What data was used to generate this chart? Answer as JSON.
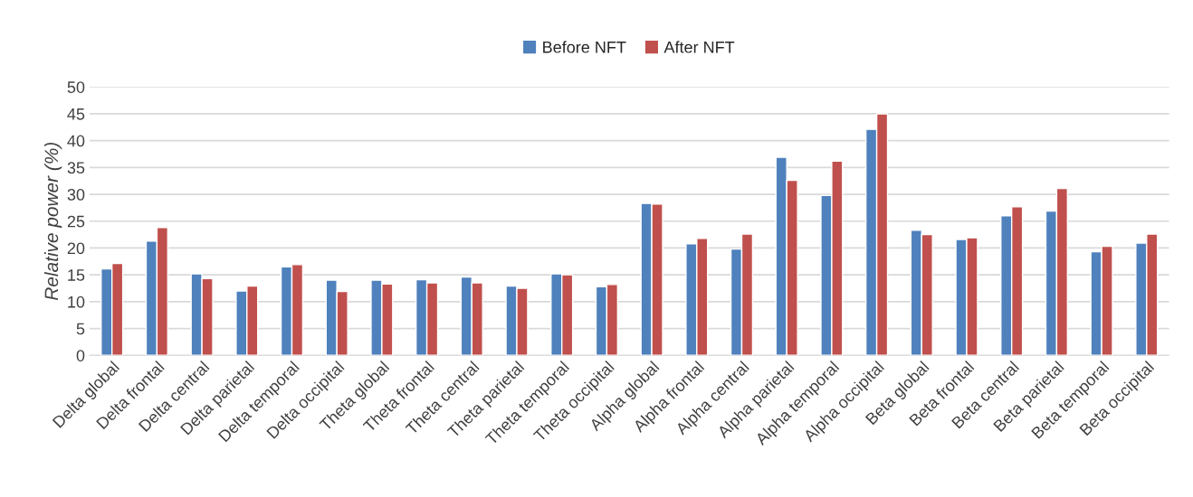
{
  "chart_data": {
    "type": "bar",
    "ylabel": "Relative power (%)",
    "categories": [
      "Delta global",
      "Delta frontal",
      "Delta central",
      "Delta parietal",
      "Delta temporal",
      "Delta occipital",
      "Theta global",
      "Theta frontal",
      "Theta central",
      "Theta parietal",
      "Theta temporal",
      "Theta occipital",
      "Alpha global",
      "Alpha frontal",
      "Alpha central",
      "Alpha parietal",
      "Alpha temporal",
      "Alpha occipital",
      "Beta global",
      "Beta frontal",
      "Beta central",
      "Beta parietal",
      "Beta temporal",
      "Beta occipital"
    ],
    "series": [
      {
        "name": "Before NFT",
        "color": "#4f81bd",
        "values": [
          16.1,
          21.3,
          15.2,
          12.0,
          16.5,
          14.0,
          14.0,
          14.1,
          14.6,
          12.9,
          15.2,
          12.8,
          28.3,
          20.8,
          19.8,
          36.9,
          29.8,
          42.1,
          23.3,
          21.6,
          26.0,
          26.9,
          19.3,
          20.9
        ]
      },
      {
        "name": "After NFT",
        "color": "#c0504d",
        "values": [
          17.1,
          23.8,
          14.3,
          12.9,
          16.9,
          11.9,
          13.3,
          13.5,
          13.5,
          12.5,
          15.0,
          13.2,
          28.2,
          21.8,
          22.6,
          32.6,
          36.2,
          45.0,
          22.5,
          21.9,
          27.7,
          31.1,
          20.3,
          22.6
        ]
      }
    ],
    "ylim": [
      0,
      50
    ],
    "yticks": [
      0,
      5,
      10,
      15,
      20,
      25,
      30,
      35,
      40,
      45,
      50
    ],
    "grid": "y",
    "legend": "top"
  }
}
